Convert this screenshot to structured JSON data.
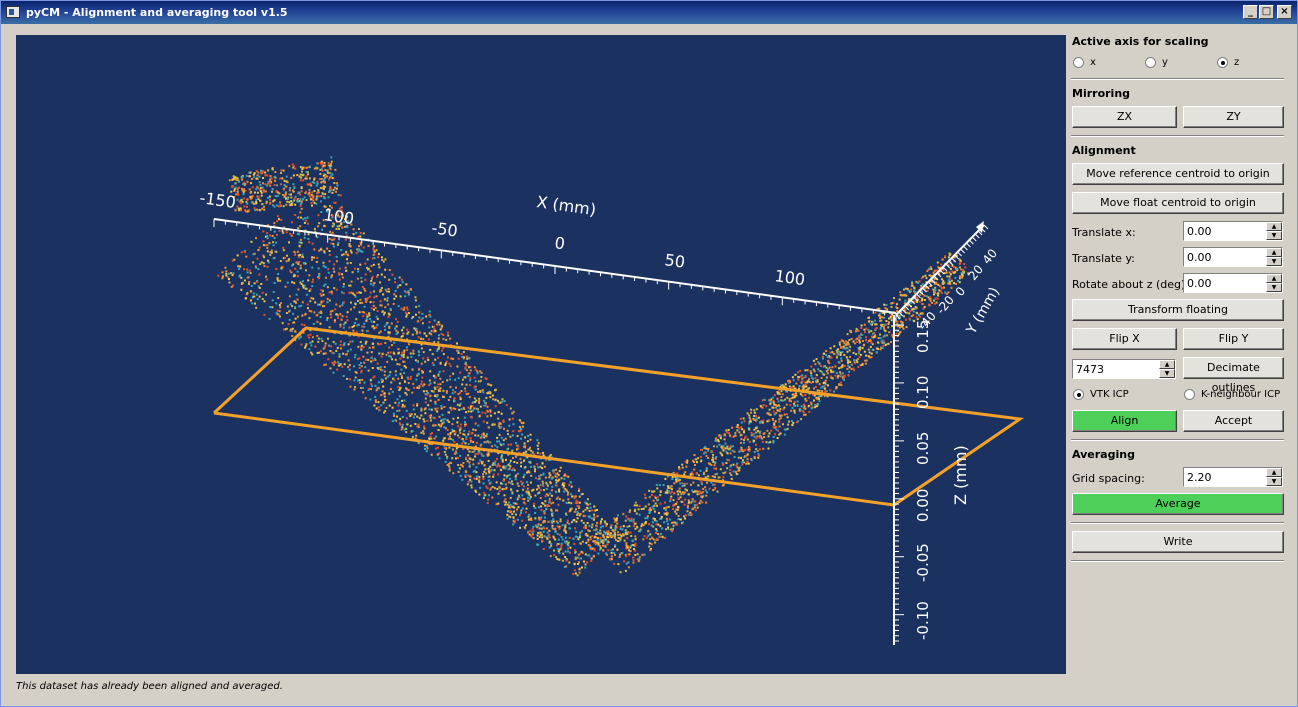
{
  "window": {
    "title": "pyCM - Alignment and averaging tool v1.5"
  },
  "plot": {
    "x_axis_title": "X (mm)",
    "x_ticks": [
      "-150",
      "100",
      "-50",
      "0",
      "50",
      "100"
    ],
    "z_axis_title": "Z (mm)",
    "z_ticks": [
      "0.15",
      "0.10",
      "0.05",
      "0.00",
      "-0.05",
      "-0.10"
    ],
    "y_axis_title": "Y (mm)",
    "y_ticks": [
      "40",
      "20",
      "0",
      "-20",
      "-40"
    ],
    "colors": {
      "background": "#1b3260",
      "outline": "#f4a12a",
      "points": [
        "#f7c748",
        "#f28a2e",
        "#e8502a",
        "#3aa7b8",
        "#d9b845"
      ]
    }
  },
  "panel": {
    "scaling": {
      "title": "Active axis for scaling",
      "options": [
        {
          "label": "x",
          "checked": false
        },
        {
          "label": "y",
          "checked": false
        },
        {
          "label": "z",
          "checked": true
        }
      ]
    },
    "mirroring": {
      "title": "Mirroring",
      "zx_label": "ZX",
      "zy_label": "ZY"
    },
    "alignment": {
      "title": "Alignment",
      "move_ref_label": "Move reference centroid to origin",
      "move_float_label": "Move float centroid to origin",
      "translate_x_label": "Translate x:",
      "translate_x_value": "0.00",
      "translate_y_label": "Translate y:",
      "translate_y_value": "0.00",
      "rotate_label": "Rotate about z (deg):",
      "rotate_value": "0.00",
      "transform_label": "Transform floating",
      "flip_x_label": "Flip X",
      "flip_y_label": "Flip Y",
      "decimate_value": "7473",
      "decimate_label": "Decimate outlines",
      "vtk_icp_label": "VTK ICP",
      "vtk_icp_checked": true,
      "kn_icp_label": "K-neighbour ICP",
      "kn_icp_checked": false,
      "align_label": "Align",
      "accept_label": "Accept"
    },
    "averaging": {
      "title": "Averaging",
      "grid_label": "Grid spacing:",
      "grid_value": "2.20",
      "average_label": "Average"
    },
    "write_label": "Write"
  },
  "status": "This dataset has already been aligned and averaged."
}
